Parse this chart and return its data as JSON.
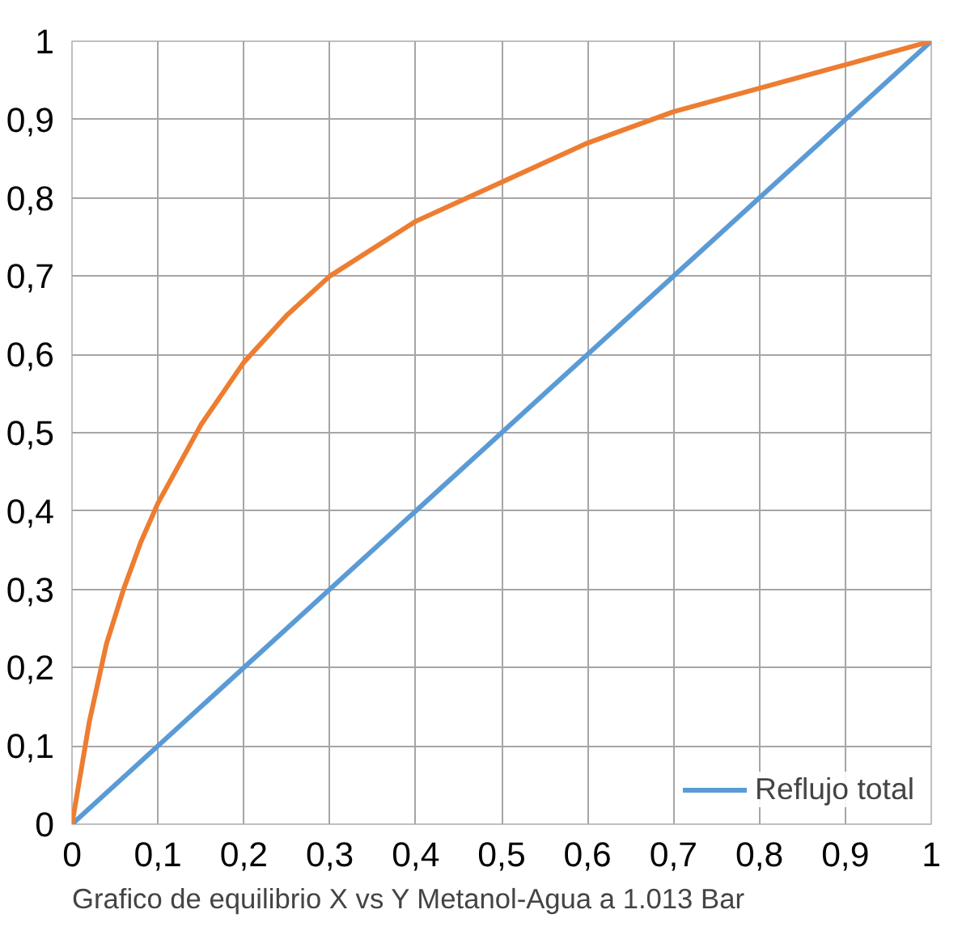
{
  "chart_data": {
    "type": "line",
    "xlabel": "Grafico de equilibrio X vs Y Metanol-Agua a 1.013  Bar",
    "xlim": [
      0,
      1
    ],
    "ylim": [
      0,
      1
    ],
    "xticks": [
      0,
      {
        "value": 0.1,
        "label": "0,1"
      },
      {
        "value": 0.2,
        "label": "0,2"
      },
      {
        "value": 0.3,
        "label": "0,3"
      },
      {
        "value": 0.4,
        "label": "0,4"
      },
      {
        "value": 0.5,
        "label": "0,5"
      },
      {
        "value": 0.6,
        "label": "0,6"
      },
      {
        "value": 0.7,
        "label": "0,7"
      },
      {
        "value": 0.8,
        "label": "0,8"
      },
      {
        "value": 0.9,
        "label": "0,9"
      },
      1
    ],
    "yticks": [
      0,
      {
        "value": 0.1,
        "label": "0,1"
      },
      {
        "value": 0.2,
        "label": "0,2"
      },
      {
        "value": 0.3,
        "label": "0,3"
      },
      {
        "value": 0.4,
        "label": "0,4"
      },
      {
        "value": 0.5,
        "label": "0,5"
      },
      {
        "value": 0.6,
        "label": "0,6"
      },
      {
        "value": 0.7,
        "label": "0,7"
      },
      {
        "value": 0.8,
        "label": "0,8"
      },
      {
        "value": 0.9,
        "label": "0,9"
      },
      1
    ],
    "grid": true,
    "legend": "bottom right",
    "marker": "none",
    "series": [
      {
        "name": "Reflujo total",
        "color": "#5b9bd5",
        "x": [
          0,
          1
        ],
        "values": [
          0,
          1
        ]
      },
      {
        "color": "#ed7d31",
        "x": [
          0,
          0.02,
          0.04,
          0.06,
          0.08,
          0.1,
          0.15,
          0.2,
          0.25,
          0.3,
          0.4,
          0.5,
          0.6,
          0.7,
          0.8,
          0.9,
          1
        ],
        "values": [
          0,
          0.13,
          0.23,
          0.3,
          0.36,
          0.41,
          0.51,
          0.59,
          0.65,
          0.7,
          0.77,
          0.82,
          0.87,
          0.91,
          0.94,
          0.97,
          1
        ]
      }
    ]
  }
}
